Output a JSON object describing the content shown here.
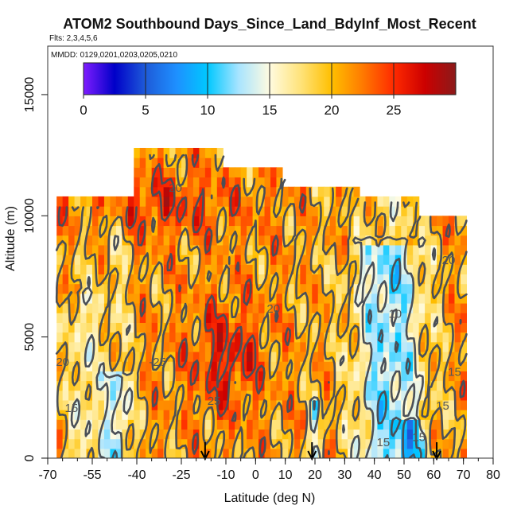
{
  "chart_data": {
    "type": "heatmap",
    "title": "ATOM2 Southbound Days_Since_Land_BdyInf_Most_Recent",
    "subtitle": "Flts: 2,3,4,5,6",
    "annotation": "MMDD: 0129,0201,0203,0205,0210",
    "xlabel": "Latitude (deg N)",
    "ylabel": "Altitude (m)",
    "xlim": [
      -70,
      80
    ],
    "ylim": [
      0,
      17000
    ],
    "x_ticks": [
      -70,
      -55,
      -40,
      -25,
      -10,
      0,
      10,
      20,
      30,
      40,
      50,
      60,
      70,
      80
    ],
    "y_ticks": [
      0,
      5000,
      10000,
      15000
    ],
    "colorbar": {
      "ticks": [
        0,
        5,
        10,
        15,
        20,
        25
      ],
      "range": [
        0,
        30
      ],
      "colors": [
        "#7f1dff",
        "#0000c8",
        "#1e5bd9",
        "#1e90ff",
        "#00c8ff",
        "#a8e4ff",
        "#fffbe0",
        "#ffe37a",
        "#ffbf00",
        "#ff7a00",
        "#ff2a00",
        "#cc0000",
        "#8b1a1a"
      ]
    },
    "contour_labels": [
      {
        "x": -27,
        "y": 11000,
        "text": "20"
      },
      {
        "x": 65,
        "y": 8000,
        "text": "20"
      },
      {
        "x": 6,
        "y": 6000,
        "text": "20"
      },
      {
        "x": 47,
        "y": 5800,
        "text": "10"
      },
      {
        "x": -33,
        "y": 3800,
        "text": "-25"
      },
      {
        "x": -65,
        "y": 3800,
        "text": "20"
      },
      {
        "x": -62,
        "y": 1900,
        "text": "15"
      },
      {
        "x": -14,
        "y": 2200,
        "text": "25"
      },
      {
        "x": 63,
        "y": 2000,
        "text": "15"
      },
      {
        "x": 67,
        "y": 3400,
        "text": "15"
      },
      {
        "x": 43,
        "y": 500,
        "text": "15"
      },
      {
        "x": 55,
        "y": 700,
        "text": "15"
      }
    ],
    "arrows_lat": [
      -17,
      19,
      61
    ],
    "grid": false,
    "legend": "colorbar-top"
  }
}
